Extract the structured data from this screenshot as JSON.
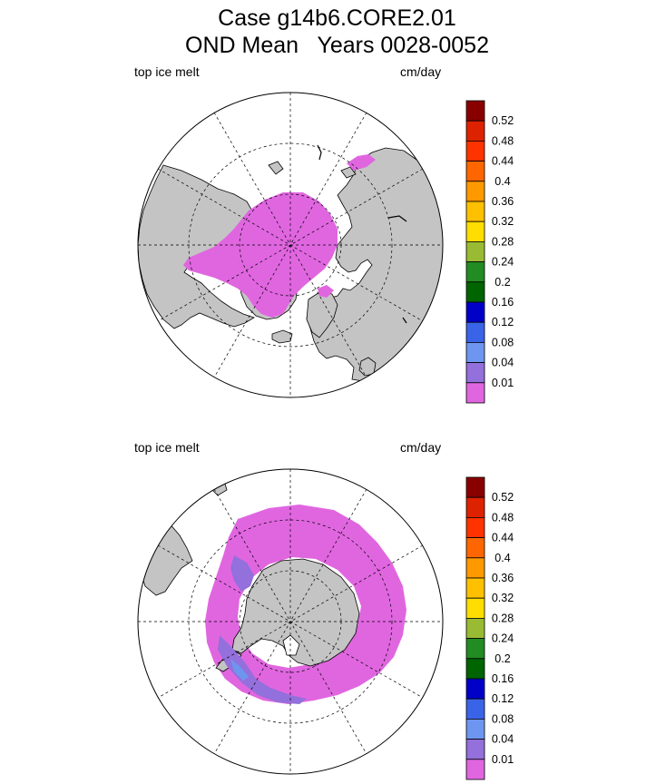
{
  "title": {
    "line1": "Case g14b6.CORE2.01",
    "line2": "OND Mean   Years 0028-0052"
  },
  "colors": {
    "land": "#c4c4c4",
    "melt_lowest": "#e066e0",
    "melt_blue_1": "#9370db",
    "melt_blue_2": "#6e96f0"
  },
  "chart_data": [
    {
      "type": "heatmap",
      "projection": "north-polar-stereographic",
      "variable": "top ice melt",
      "units": "cm/day",
      "levels": [
        "0.01",
        "0.04",
        "0.08",
        "0.12",
        "0.16",
        "0.2",
        "0.24",
        "0.28",
        "0.32",
        "0.36",
        "0.4",
        "0.44",
        "0.48",
        "0.52"
      ],
      "palette": [
        "#e066e0",
        "#9370db",
        "#6e96f0",
        "#3a64e8",
        "#0000c8",
        "#006400",
        "#228b22",
        "#99bb33",
        "#ffdd00",
        "#ffc000",
        "#ff9900",
        "#ff6600",
        "#ff3300",
        "#dd2200",
        "#880000"
      ],
      "legend_position": "right",
      "dominant_range": "0.01"
    },
    {
      "type": "heatmap",
      "projection": "south-polar-stereographic",
      "variable": "top ice melt",
      "units": "cm/day",
      "levels": [
        "0.01",
        "0.04",
        "0.08",
        "0.12",
        "0.16",
        "0.2",
        "0.24",
        "0.28",
        "0.32",
        "0.36",
        "0.4",
        "0.44",
        "0.48",
        "0.52"
      ],
      "palette": [
        "#e066e0",
        "#9370db",
        "#6e96f0",
        "#3a64e8",
        "#0000c8",
        "#006400",
        "#228b22",
        "#99bb33",
        "#ffdd00",
        "#ffc000",
        "#ff9900",
        "#ff6600",
        "#ff3300",
        "#dd2200",
        "#880000"
      ],
      "legend_position": "right",
      "dominant_range": "0.01 with 0.04-0.08 patches in Weddell Sea"
    }
  ]
}
